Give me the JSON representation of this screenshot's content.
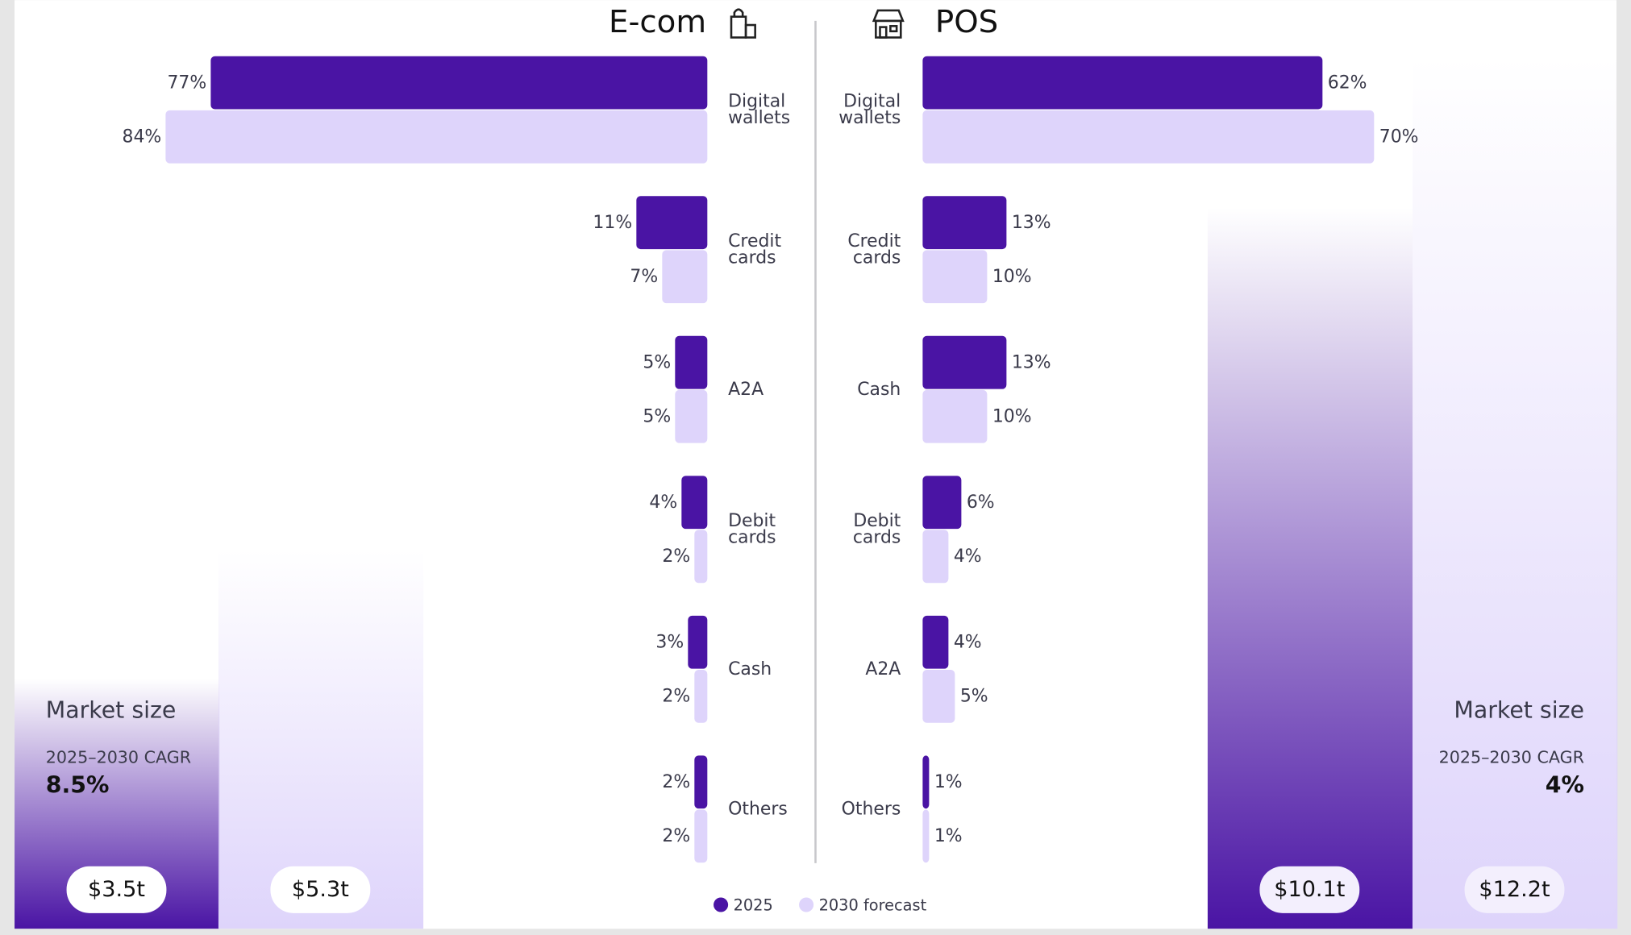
{
  "chart_data": [
    {
      "type": "bar",
      "orientation": "horizontal",
      "title": "E-com",
      "categories": [
        "Digital wallets",
        "Credit cards",
        "A2A",
        "Debit cards",
        "Cash",
        "Others"
      ],
      "series": [
        {
          "name": "2025",
          "color": "#4a14a4",
          "values": [
            77,
            11,
            5,
            4,
            3,
            2
          ],
          "value_labels": [
            "77%",
            "11%",
            "5%",
            "4%",
            "3%",
            "2%"
          ]
        },
        {
          "name": "2030 forecast",
          "color": "#ded4fb",
          "values": [
            84,
            7,
            5,
            2,
            2,
            2
          ],
          "value_labels": [
            "84%",
            "7%",
            "5%",
            "2%",
            "2%",
            "2%"
          ]
        }
      ],
      "xlim": [
        0,
        100
      ],
      "market_size": {
        "label": "Market size",
        "cagr_label": "2025–2030 CAGR",
        "cagr": "8.5%",
        "values": [
          3.5,
          5.3
        ],
        "value_labels": [
          "$3.5t",
          "$5.3t"
        ],
        "ylim": [
          0,
          13
        ]
      }
    },
    {
      "type": "bar",
      "orientation": "horizontal",
      "title": "POS",
      "categories": [
        "Digital wallets",
        "Credit cards",
        "Cash",
        "Debit cards",
        "A2A",
        "Others"
      ],
      "series": [
        {
          "name": "2025",
          "color": "#4a14a4",
          "values": [
            62,
            13,
            13,
            6,
            4,
            1
          ],
          "value_labels": [
            "62%",
            "13%",
            "13%",
            "6%",
            "4%",
            "1%"
          ]
        },
        {
          "name": "2030 forecast",
          "color": "#ded4fb",
          "values": [
            70,
            10,
            10,
            4,
            5,
            1
          ],
          "value_labels": [
            "70%",
            "10%",
            "10%",
            "4%",
            "5%",
            "1%"
          ]
        }
      ],
      "xlim": [
        0,
        100
      ],
      "market_size": {
        "label": "Market size",
        "cagr_label": "2025–2030 CAGR",
        "cagr": "4%",
        "values": [
          10.1,
          12.2
        ],
        "value_labels": [
          "$10.1t",
          "$12.2t"
        ],
        "ylim": [
          0,
          13
        ]
      }
    }
  ]
}
